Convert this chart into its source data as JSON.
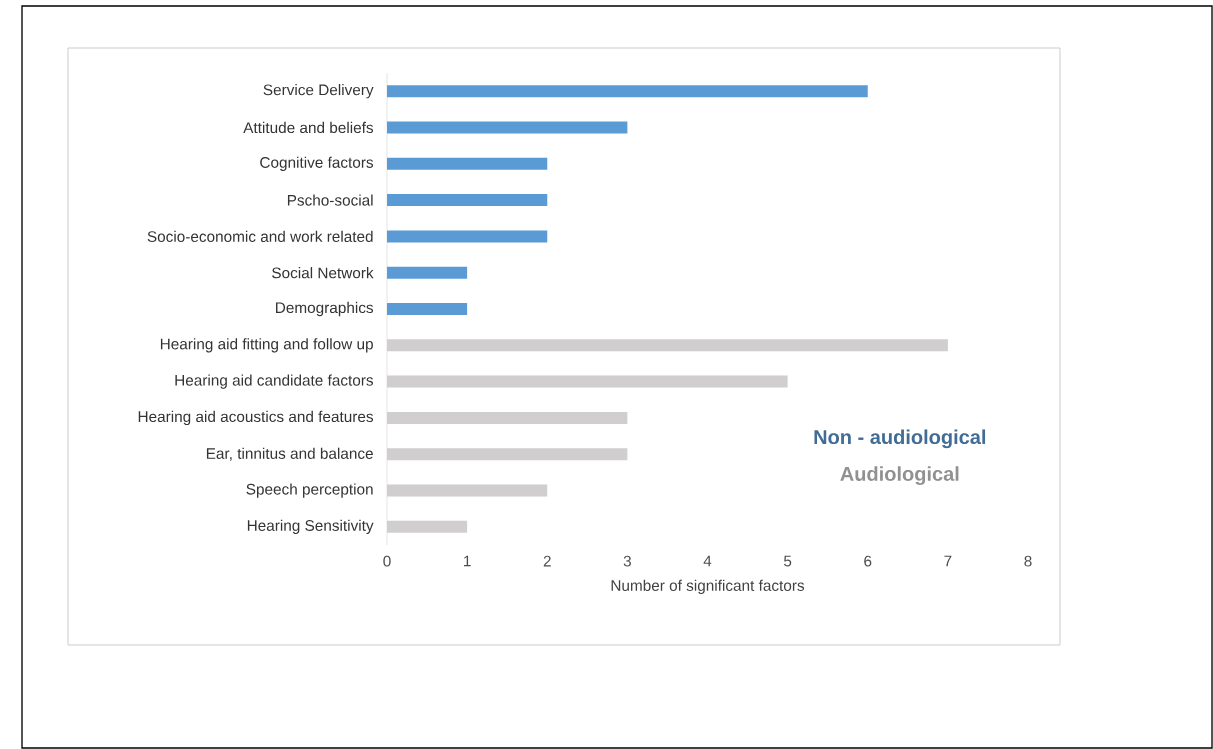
{
  "chart_data": {
    "type": "bar",
    "orientation": "horizontal",
    "xlabel": "Number of significant factors",
    "categories": [
      "Service Delivery",
      "Attitude and beliefs",
      "Cognitive factors",
      "Pscho-social",
      "Socio-economic and work related",
      "Social Network",
      "Demographics",
      "Hearing aid fitting and follow up",
      "Hearing aid candidate factors",
      "Hearing aid acoustics and features",
      "Ear, tinnitus and balance",
      "Speech perception",
      "Hearing Sensitivity"
    ],
    "series": [
      {
        "name": "Non - audiological",
        "color": "#5b9bd5",
        "values": [
          6,
          3,
          2,
          2,
          2,
          1,
          1,
          null,
          null,
          null,
          null,
          null,
          null
        ]
      },
      {
        "name": "Audiological",
        "color": "#d0cece",
        "values": [
          null,
          null,
          null,
          null,
          null,
          null,
          null,
          7,
          5,
          3,
          3,
          2,
          1
        ]
      }
    ],
    "xlim": [
      0,
      8
    ],
    "xticks": [
      0,
      1,
      2,
      3,
      4,
      5,
      6,
      7,
      8
    ],
    "grid": false,
    "legend": "right"
  }
}
